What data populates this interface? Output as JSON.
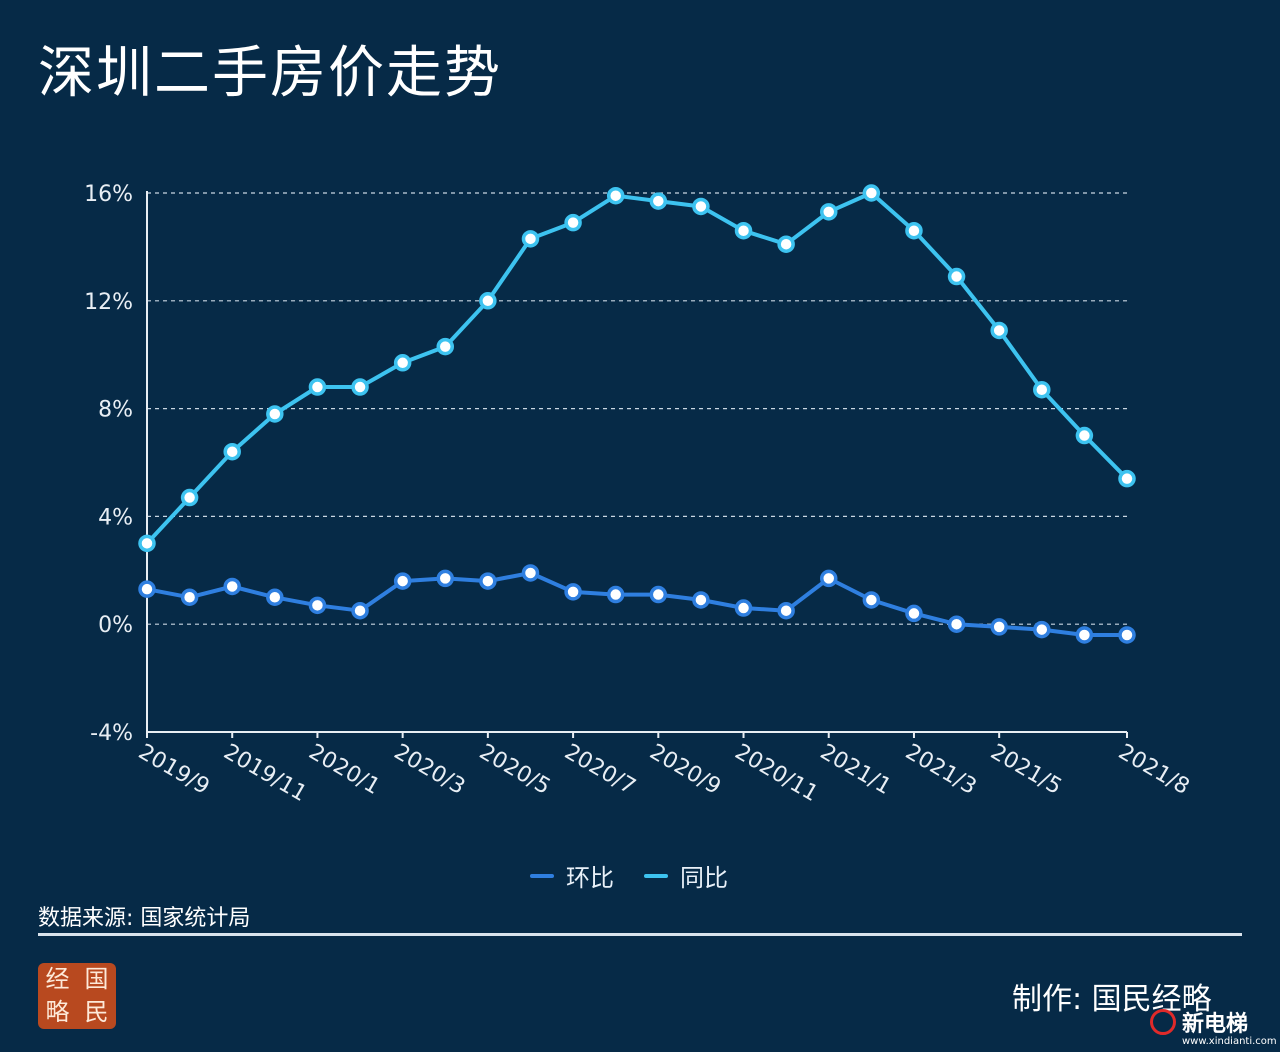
{
  "title": "深圳二手房价走势",
  "source": "数据来源: 国家统计局",
  "credit": "制作: 国民经略",
  "seal": [
    "经",
    "国",
    "略",
    "民"
  ],
  "brand": {
    "name": "新电梯",
    "url": "www.xindianti.com",
    "icon": "elevator-logo-icon",
    "color": "#e02a2a"
  },
  "colors": {
    "background": "#062a47",
    "mom": "#2f7fe0",
    "yoy": "#3dc3f0",
    "axis": "#e8eef4",
    "grid": "#c9d6e2"
  },
  "chart_data": {
    "type": "line",
    "x": [
      "2019/9",
      "2019/10",
      "2019/11",
      "2019/12",
      "2020/1",
      "2020/2",
      "2020/3",
      "2020/4",
      "2020/5",
      "2020/6",
      "2020/7",
      "2020/8",
      "2020/9",
      "2020/10",
      "2020/11",
      "2020/12",
      "2021/1",
      "2021/2",
      "2021/3",
      "2021/4",
      "2021/5",
      "2021/6",
      "2021/7",
      "2021/8"
    ],
    "tick_labels": [
      "2019/9",
      "2019/11",
      "2020/1",
      "2020/3",
      "2020/5",
      "2020/7",
      "2020/9",
      "2020/11",
      "2021/1",
      "2021/3",
      "2021/5",
      "2021/8"
    ],
    "tick_indices": [
      0,
      2,
      4,
      6,
      8,
      10,
      12,
      14,
      16,
      18,
      20,
      23
    ],
    "yticks": [
      -4,
      0,
      4,
      8,
      12,
      16
    ],
    "ytick_labels": [
      "-4%",
      "0%",
      "4%",
      "8%",
      "12%",
      "16%"
    ],
    "ylim": [
      -4,
      16
    ],
    "grid": true,
    "legend_position": "bottom-center",
    "series": [
      {
        "name": "环比",
        "color": "#2f7fe0",
        "values": [
          1.3,
          1.0,
          1.4,
          1.0,
          0.7,
          0.5,
          1.6,
          1.7,
          1.6,
          1.9,
          1.2,
          1.1,
          1.1,
          0.9,
          0.6,
          0.5,
          1.7,
          0.9,
          0.4,
          0.0,
          -0.1,
          -0.2,
          -0.4,
          -0.4
        ]
      },
      {
        "name": "同比",
        "color": "#3dc3f0",
        "values": [
          3.0,
          4.7,
          6.4,
          7.8,
          8.8,
          8.8,
          9.7,
          10.3,
          12.0,
          14.3,
          14.9,
          15.9,
          15.7,
          15.5,
          14.6,
          14.1,
          15.3,
          16.0,
          14.6,
          12.9,
          10.9,
          8.7,
          7.0,
          5.4
        ]
      }
    ]
  }
}
